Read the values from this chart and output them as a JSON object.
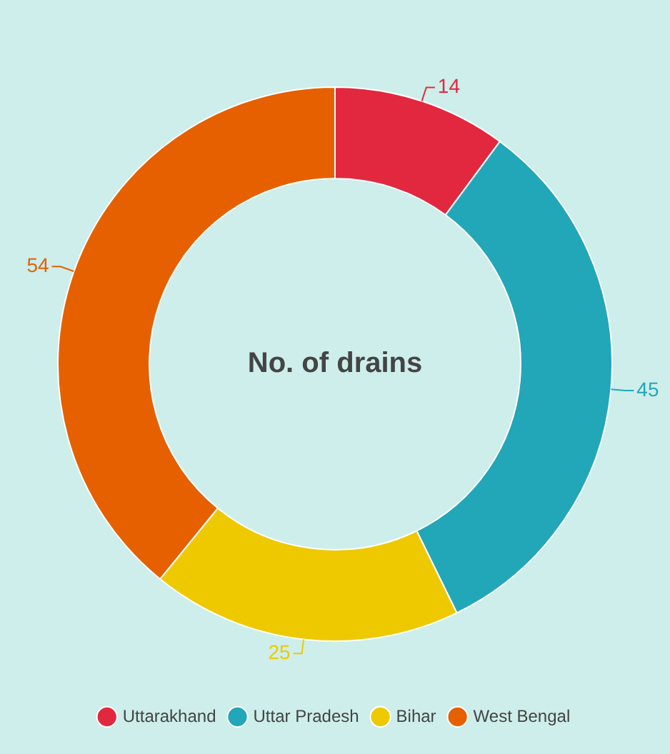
{
  "chart_data": {
    "type": "donut",
    "title": "No. of drains",
    "categories": [
      "Uttarakhand",
      "Uttar Pradesh",
      "Bihar",
      "West Bengal"
    ],
    "values": [
      14,
      45,
      25,
      54
    ],
    "colors": [
      "#e2283f",
      "#21a7b8",
      "#eec900",
      "#e66000"
    ],
    "data_labels": true,
    "legend": "bottom"
  }
}
